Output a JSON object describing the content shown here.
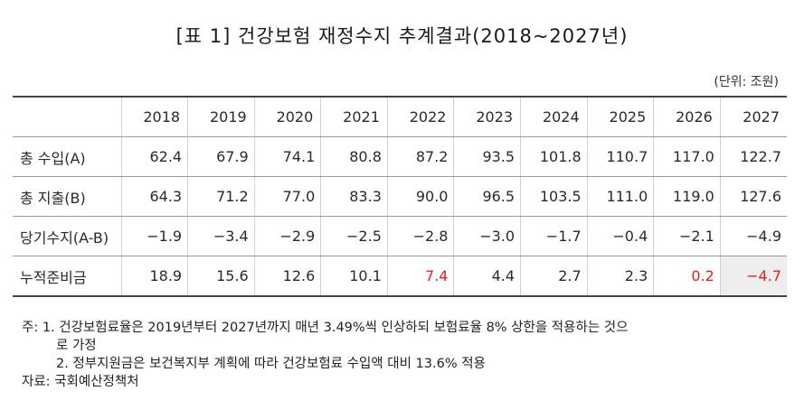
{
  "title": "[표 1] 건강보험 재정수지 추계결과(2018~2027년)",
  "unit": "(단위: 조원)",
  "table": {
    "years": [
      "2018",
      "2019",
      "2020",
      "2021",
      "2022",
      "2023",
      "2024",
      "2025",
      "2026",
      "2027"
    ],
    "rows": [
      {
        "label": "총 수입(A)",
        "values": [
          "62.4",
          "67.9",
          "74.1",
          "80.8",
          "87.2",
          "93.5",
          "101.8",
          "110.7",
          "117.0",
          "122.7"
        ]
      },
      {
        "label": "총 지출(B)",
        "values": [
          "64.3",
          "71.2",
          "77.0",
          "83.3",
          "90.0",
          "96.5",
          "103.5",
          "111.0",
          "119.0",
          "127.6"
        ]
      },
      {
        "label": "당기수지(A-B)",
        "values": [
          "−1.9",
          "−3.4",
          "−2.9",
          "−2.5",
          "−2.8",
          "−3.0",
          "−1.7",
          "−0.4",
          "−2.1",
          "−4.9"
        ]
      },
      {
        "label": "누적준비금",
        "values": [
          "18.9",
          "15.6",
          "12.6",
          "10.1",
          "7.4",
          "4.4",
          "2.7",
          "2.3",
          "0.2",
          "−4.7"
        ]
      }
    ],
    "highlight_color": "#e02020",
    "shade_color": "#eeeeee"
  },
  "notes": {
    "line1": "주: 1. 건강보험료율은 2019년부터 2027년까지 매년 3.49%씩 인상하되 보험료율 8% 상한을 적용하는 것으",
    "line1b": "로 가정",
    "line2": "2. 정부지원금은 보건복지부 계획에 따라 건강보험료 수입액 대비 13.6% 적용",
    "source": "자료: 국회예산정책처"
  }
}
